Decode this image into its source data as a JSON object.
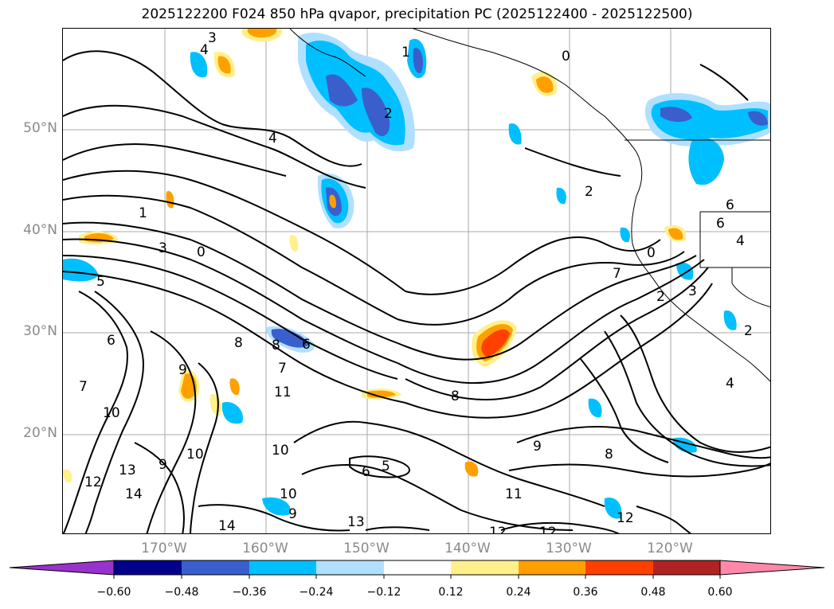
{
  "title": "2025122200 F024 850 hPa qvapor, precipitation PC (2025122400 - 2025122500)",
  "map": {
    "lat_labels": [
      "50°N",
      "40°N",
      "30°N",
      "20°N"
    ],
    "lon_labels": [
      "170°W",
      "160°W",
      "150°W",
      "140°W",
      "130°W",
      "120°W"
    ],
    "contour_labels": [
      "0",
      "1",
      "2",
      "3",
      "4",
      "5",
      "6",
      "7",
      "8",
      "9",
      "10",
      "11",
      "12",
      "13",
      "14"
    ],
    "shading": {
      "positive_colors": [
        "#fff08c",
        "#ffa000",
        "#ff4000",
        "#b22222",
        "#ff88aa"
      ],
      "negative_colors": [
        "#b0e0ff",
        "#00bfff",
        "#3a5fcd",
        "#00008b",
        "#9932cc"
      ]
    }
  },
  "colorbar": {
    "ticks": [
      "−0.60",
      "−0.48",
      "−0.36",
      "−0.24",
      "−0.12",
      "0.12",
      "0.24",
      "0.36",
      "0.48",
      "0.60"
    ],
    "colors": [
      "#9932cc",
      "#00008b",
      "#3a5fcd",
      "#00bfff",
      "#b0e0ff",
      "#ffffff",
      "#fff08c",
      "#ffa000",
      "#ff4000",
      "#b22222",
      "#ff88aa"
    ]
  }
}
